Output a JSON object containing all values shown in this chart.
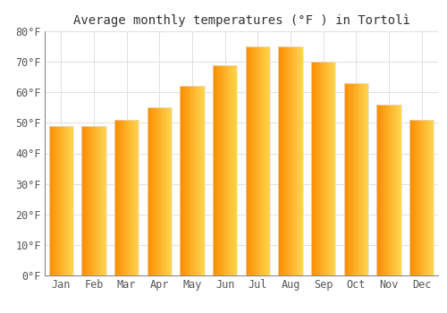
{
  "title": "Average monthly temperatures (°F ) in Tortolì",
  "months": [
    "Jan",
    "Feb",
    "Mar",
    "Apr",
    "May",
    "Jun",
    "Jul",
    "Aug",
    "Sep",
    "Oct",
    "Nov",
    "Dec"
  ],
  "values": [
    49,
    49,
    51,
    55,
    62,
    69,
    75,
    75,
    70,
    63,
    56,
    51
  ],
  "ylim": [
    0,
    80
  ],
  "yticks": [
    0,
    10,
    20,
    30,
    40,
    50,
    60,
    70,
    80
  ],
  "ytick_labels": [
    "0°F",
    "10°F",
    "20°F",
    "30°F",
    "40°F",
    "50°F",
    "60°F",
    "70°F",
    "80°F"
  ],
  "bar_color_main": "#FFA726",
  "bar_color_light": "#FFD54F",
  "bar_color_dark": "#FB8C00",
  "bar_edge_color": "#E0E0E0",
  "background_color": "#FFFFFF",
  "grid_color": "#E0E0E0",
  "title_fontsize": 10,
  "tick_fontsize": 8.5
}
